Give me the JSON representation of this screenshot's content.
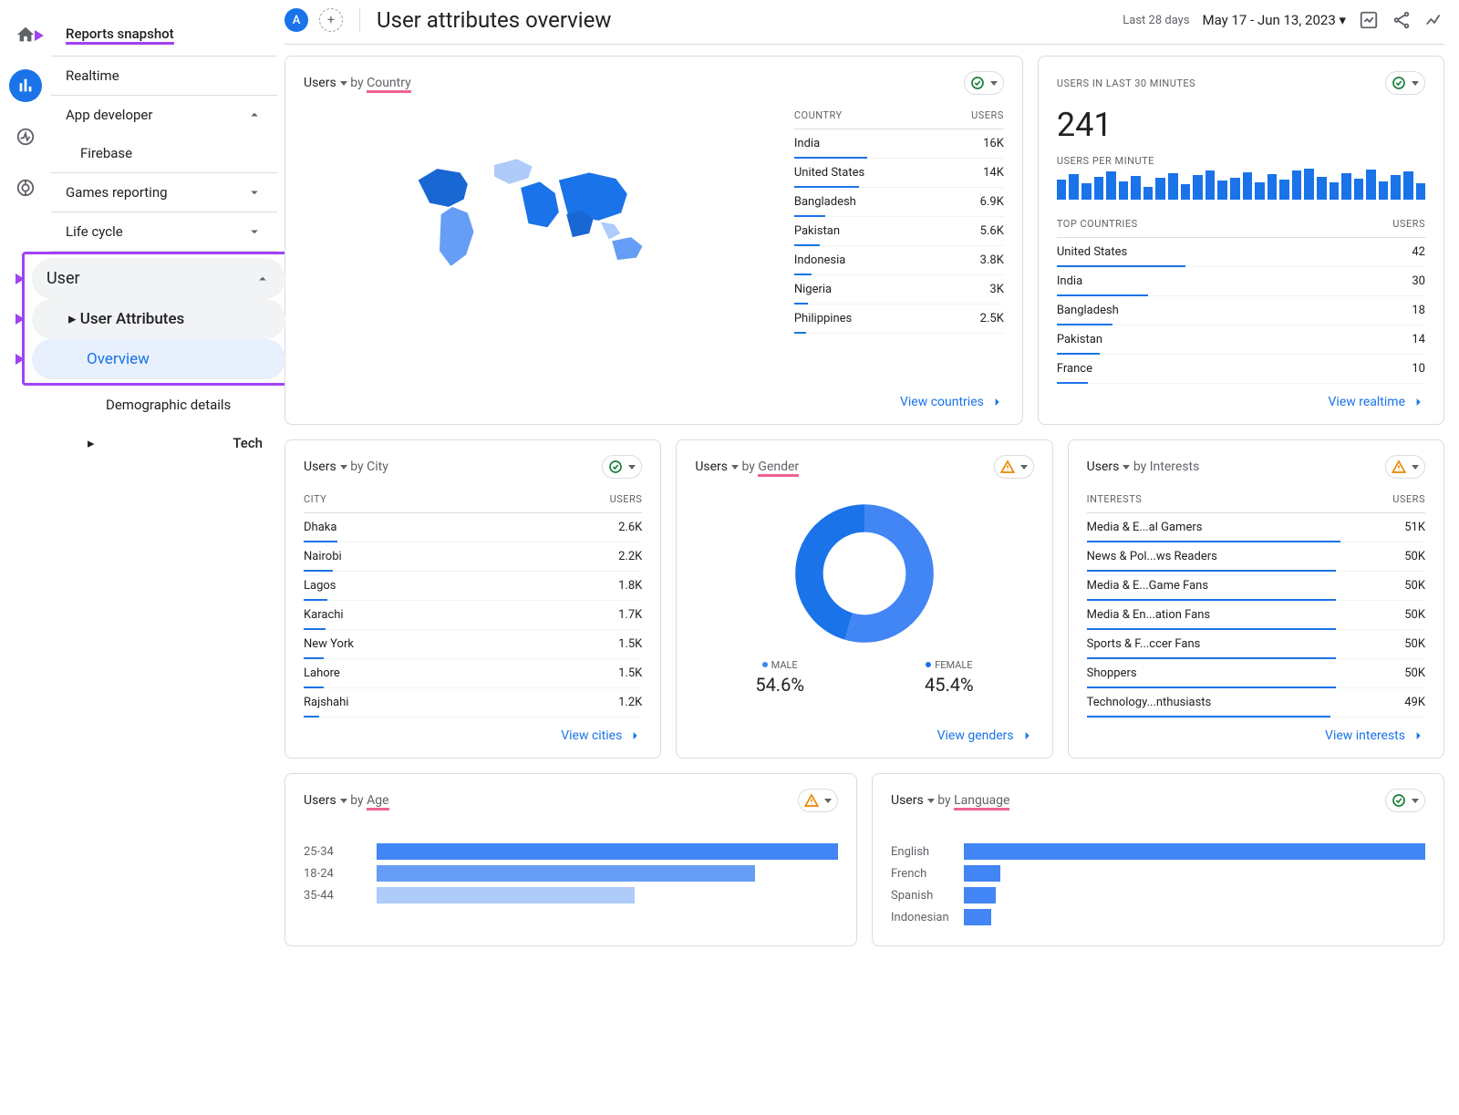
{
  "colors": {
    "primary": "#1a73e8",
    "accent_purple": "#a142f4",
    "accent_pink": "#f06292",
    "border": "#dadce0",
    "text_muted": "#5f6368",
    "warn": "#ea8600",
    "ok": "#188038"
  },
  "sidebar": {
    "reports_snapshot": "Reports snapshot",
    "realtime": "Realtime",
    "app_developer": "App developer",
    "firebase": "Firebase",
    "games_reporting": "Games reporting",
    "life_cycle": "Life cycle",
    "user": "User",
    "user_attributes": "User Attributes",
    "overview": "Overview",
    "demographic_details": "Demographic details",
    "tech": "Tech"
  },
  "header": {
    "chip": "A",
    "title": "User attributes overview",
    "range_prefix": "Last 28 days",
    "range": "May 17 - Jun 13, 2023"
  },
  "country_card": {
    "metric": "Users",
    "by": "by",
    "dim": "Country",
    "head_dim": "COUNTRY",
    "head_val": "USERS",
    "rows": [
      {
        "label": "India",
        "value": "16K",
        "bar": 100
      },
      {
        "label": "United States",
        "value": "14K",
        "bar": 88
      },
      {
        "label": "Bangladesh",
        "value": "6.9K",
        "bar": 43
      },
      {
        "label": "Pakistan",
        "value": "5.6K",
        "bar": 35
      },
      {
        "label": "Indonesia",
        "value": "3.8K",
        "bar": 24
      },
      {
        "label": "Nigeria",
        "value": "3K",
        "bar": 19
      },
      {
        "label": "Philippines",
        "value": "2.5K",
        "bar": 16
      }
    ],
    "view": "View countries"
  },
  "realtime_card": {
    "label": "USERS IN LAST 30 MINUTES",
    "value": "241",
    "per_min": "USERS PER MINUTE",
    "bars": [
      62,
      78,
      50,
      70,
      85,
      55,
      72,
      40,
      66,
      80,
      48,
      75,
      90,
      58,
      68,
      82,
      52,
      77,
      60,
      88,
      95,
      70,
      54,
      80,
      64,
      92,
      56,
      74,
      86,
      50
    ],
    "top_label": "TOP COUNTRIES",
    "top_val": "USERS",
    "rows": [
      {
        "label": "United States",
        "value": "42",
        "bar": 100
      },
      {
        "label": "India",
        "value": "30",
        "bar": 71
      },
      {
        "label": "Bangladesh",
        "value": "18",
        "bar": 43
      },
      {
        "label": "Pakistan",
        "value": "14",
        "bar": 33
      },
      {
        "label": "France",
        "value": "10",
        "bar": 24
      }
    ],
    "view": "View realtime"
  },
  "city_card": {
    "metric": "Users",
    "by": "by",
    "dim": "City",
    "head_dim": "CITY",
    "head_val": "USERS",
    "rows": [
      {
        "label": "Dhaka",
        "value": "2.6K",
        "bar": 100
      },
      {
        "label": "Nairobi",
        "value": "2.2K",
        "bar": 85
      },
      {
        "label": "Lagos",
        "value": "1.8K",
        "bar": 69
      },
      {
        "label": "Karachi",
        "value": "1.7K",
        "bar": 65
      },
      {
        "label": "New York",
        "value": "1.5K",
        "bar": 58
      },
      {
        "label": "Lahore",
        "value": "1.5K",
        "bar": 58
      },
      {
        "label": "Rajshahi",
        "value": "1.2K",
        "bar": 46
      }
    ],
    "view": "View cities"
  },
  "gender_card": {
    "metric": "Users",
    "by": "by",
    "dim": "Gender",
    "male_label": "MALE",
    "male_pct": "54.6%",
    "female_label": "FEMALE",
    "female_pct": "45.4%",
    "male_val": 54.6,
    "female_val": 45.4,
    "colors": {
      "male": "#4285f4",
      "female": "#1a73e8"
    },
    "view": "View genders"
  },
  "interests_card": {
    "metric": "Users",
    "by": "by",
    "dim": "Interests",
    "head_dim": "INTERESTS",
    "head_val": "USERS",
    "rows": [
      {
        "label": "Media & E...al Gamers",
        "value": "51K",
        "bar": 100
      },
      {
        "label": "News & Pol...ws Readers",
        "value": "50K",
        "bar": 98
      },
      {
        "label": "Media & E...Game Fans",
        "value": "50K",
        "bar": 98
      },
      {
        "label": "Media & En...ation Fans",
        "value": "50K",
        "bar": 98
      },
      {
        "label": "Sports & F...ccer Fans",
        "value": "50K",
        "bar": 98
      },
      {
        "label": "Shoppers",
        "value": "50K",
        "bar": 98
      },
      {
        "label": "Technology...nthusiasts",
        "value": "49K",
        "bar": 96
      }
    ],
    "view": "View interests"
  },
  "age_card": {
    "metric": "Users",
    "by": "by",
    "dim": "Age",
    "rows": [
      {
        "label": "25-34",
        "bar": 100,
        "color": "#4285f4"
      },
      {
        "label": "18-24",
        "bar": 82,
        "color": "#669df6"
      },
      {
        "label": "35-44",
        "bar": 56,
        "color": "#aecbfa"
      }
    ]
  },
  "language_card": {
    "metric": "Users",
    "by": "by",
    "dim": "Language",
    "rows": [
      {
        "label": "English",
        "bar": 100
      },
      {
        "label": "French",
        "bar": 8
      },
      {
        "label": "Spanish",
        "bar": 7
      },
      {
        "label": "Indonesian",
        "bar": 6
      }
    ]
  }
}
